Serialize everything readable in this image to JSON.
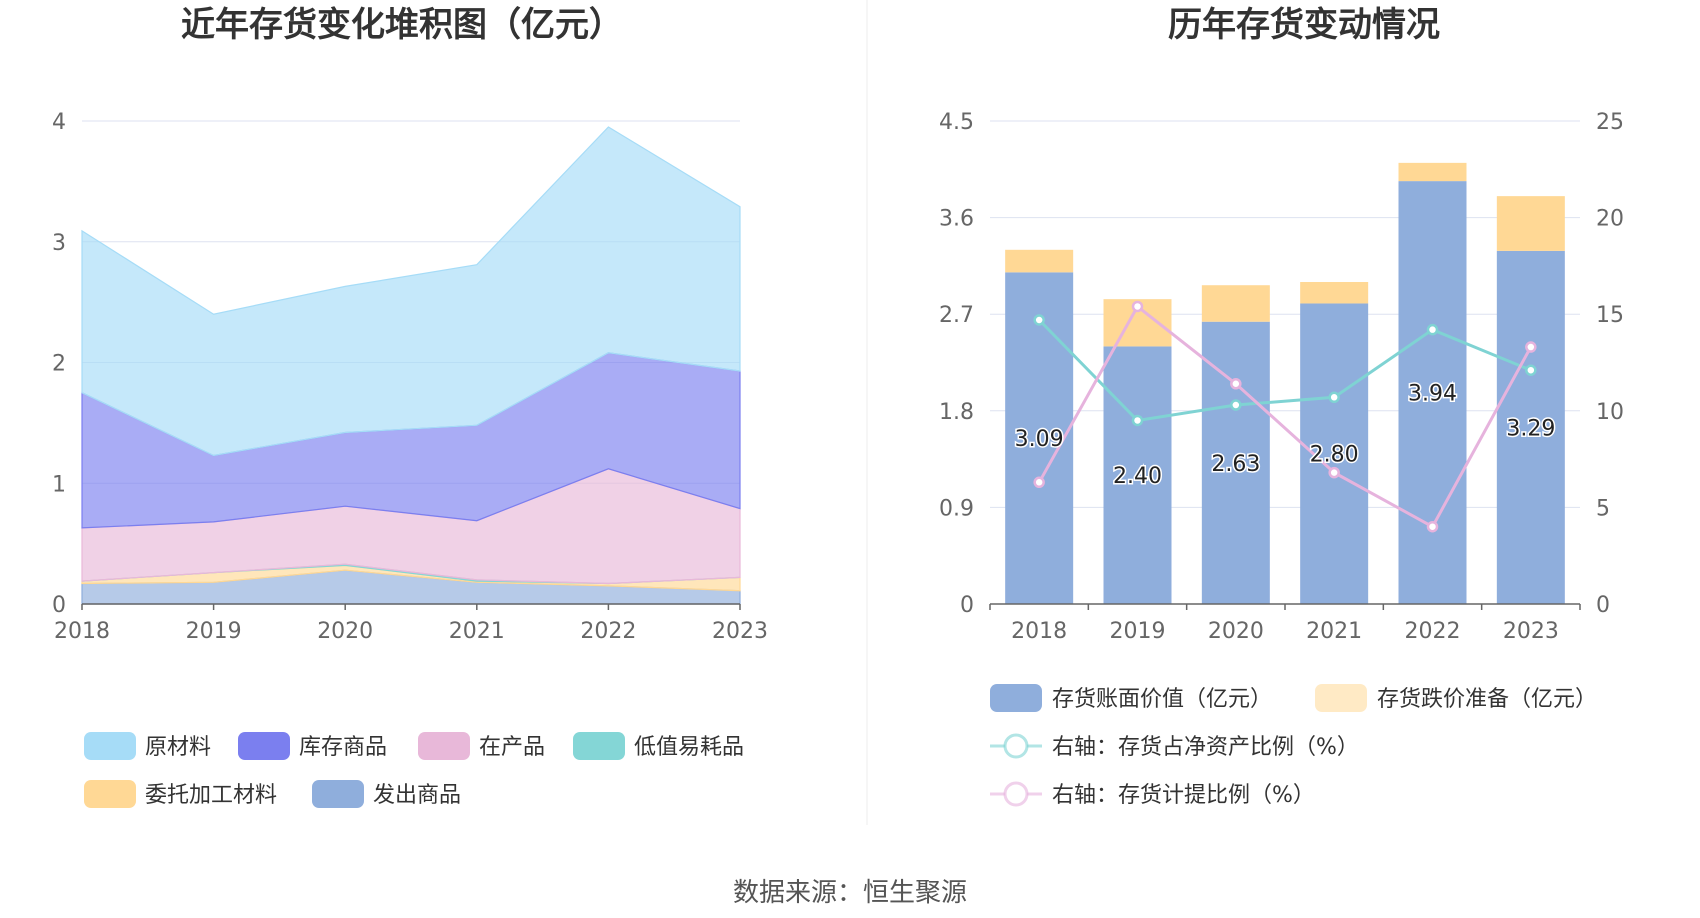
{
  "source_label": "数据来源：恒生聚源",
  "colors": {
    "raw_material": "#a6dcf7",
    "goods": "#7b7fef",
    "wip": "#e8b8d9",
    "consumables": "#84d6d6",
    "outsourced": "#ffd895",
    "shipped": "#8faedc",
    "book_value": "#8faedc",
    "provision": "#ffd895",
    "ratio_net": "#7fd3d3",
    "ratio_prov": "#e6b3dd",
    "grid": "#dde2f0",
    "axis": "#666666",
    "divider": "#eeeeee"
  },
  "chart_data": [
    {
      "type": "area",
      "stacked": true,
      "title": "近年存货变化堆积图（亿元）",
      "x": [
        "2018",
        "2019",
        "2020",
        "2021",
        "2022",
        "2023"
      ],
      "ylim": [
        0,
        4
      ],
      "yticks": [
        "0",
        "1",
        "2",
        "3",
        "4"
      ],
      "grid": true,
      "legend_position": "bottom",
      "series": [
        {
          "name": "发出商品",
          "color_key": "shipped",
          "values": [
            0.17,
            0.18,
            0.28,
            0.18,
            0.15,
            0.11
          ]
        },
        {
          "name": "委托加工材料",
          "color_key": "outsourced",
          "values": [
            0.02,
            0.08,
            0.04,
            0.01,
            0.02,
            0.11
          ]
        },
        {
          "name": "低值易耗品",
          "color_key": "consumables",
          "values": [
            0.0,
            0.0,
            0.01,
            0.01,
            0.0,
            0.0
          ]
        },
        {
          "name": "在产品",
          "color_key": "wip",
          "values": [
            0.44,
            0.42,
            0.48,
            0.49,
            0.95,
            0.57
          ]
        },
        {
          "name": "库存商品",
          "color_key": "goods",
          "values": [
            1.12,
            0.55,
            0.61,
            0.79,
            0.96,
            1.14
          ]
        },
        {
          "name": "原材料",
          "color_key": "raw_material",
          "values": [
            1.34,
            1.17,
            1.21,
            1.33,
            1.87,
            1.36
          ]
        }
      ],
      "legend": [
        {
          "name": "原材料",
          "color_key": "raw_material"
        },
        {
          "name": "库存商品",
          "color_key": "goods"
        },
        {
          "name": "在产品",
          "color_key": "wip"
        },
        {
          "name": "低值易耗品",
          "color_key": "consumables"
        },
        {
          "name": "委托加工材料",
          "color_key": "outsourced"
        },
        {
          "name": "发出商品",
          "color_key": "shipped"
        }
      ]
    },
    {
      "type": "bar",
      "stacked": true,
      "title": "历年存货变动情况",
      "categories": [
        "2018",
        "2019",
        "2020",
        "2021",
        "2022",
        "2023"
      ],
      "ylim": [
        0,
        4.5
      ],
      "yticks": [
        "0",
        "0.9",
        "1.8",
        "2.7",
        "3.6",
        "4.5"
      ],
      "y2lim": [
        0,
        25
      ],
      "y2ticks": [
        "0",
        "5",
        "10",
        "15",
        "20",
        "25"
      ],
      "grid": true,
      "legend_position": "bottom",
      "bars": [
        {
          "name": "存货账面价值（亿元）",
          "color_key": "book_value",
          "values": [
            3.09,
            2.4,
            2.63,
            2.8,
            3.94,
            3.29
          ],
          "labels": [
            "3.09",
            "2.40",
            "2.63",
            "2.80",
            "3.94",
            "3.29"
          ]
        },
        {
          "name": "存货跌价准备（亿元）",
          "color_key": "provision",
          "values": [
            0.21,
            0.44,
            0.34,
            0.2,
            0.17,
            0.51
          ]
        }
      ],
      "lines": [
        {
          "name": "右轴：存货占净资产比例（%）",
          "color_key": "ratio_net",
          "axis": "right",
          "values": [
            14.7,
            9.5,
            10.3,
            10.7,
            14.2,
            12.1
          ]
        },
        {
          "name": "右轴：存货计提比例（%）",
          "color_key": "ratio_prov",
          "axis": "right",
          "values": [
            6.3,
            15.4,
            11.4,
            6.8,
            4.0,
            13.3
          ]
        }
      ]
    }
  ]
}
